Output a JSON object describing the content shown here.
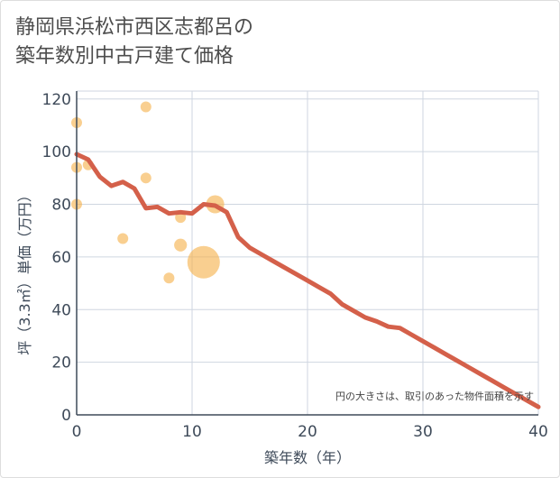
{
  "chart_data": {
    "type": "scatter+line",
    "title_lines": [
      "静岡県浜松市西区志都呂の",
      "築年数別中古戸建て価格"
    ],
    "xlabel": "築年数（年）",
    "ylabel": "坪（3.3㎡）単価（万円）",
    "xlim": [
      0,
      40
    ],
    "ylim": [
      0,
      123
    ],
    "xticks": [
      0,
      10,
      20,
      30,
      40
    ],
    "yticks": [
      0,
      20,
      40,
      60,
      80,
      100,
      120
    ],
    "grid": true,
    "annotation": "円の大きさは、取引のあった物件面積を示す",
    "scatter": [
      {
        "x": 0,
        "y": 111,
        "size": 1
      },
      {
        "x": 0,
        "y": 94,
        "size": 1
      },
      {
        "x": 0,
        "y": 80,
        "size": 1
      },
      {
        "x": 1,
        "y": 95,
        "size": 1
      },
      {
        "x": 4,
        "y": 67,
        "size": 1
      },
      {
        "x": 6,
        "y": 117,
        "size": 1
      },
      {
        "x": 6,
        "y": 90,
        "size": 1
      },
      {
        "x": 8,
        "y": 52,
        "size": 1
      },
      {
        "x": 9,
        "y": 75,
        "size": 1
      },
      {
        "x": 9,
        "y": 64.5,
        "size": 1.4
      },
      {
        "x": 11,
        "y": 58,
        "size": 9
      },
      {
        "x": 12,
        "y": 80,
        "size": 2.8
      }
    ],
    "trend": {
      "x": [
        0,
        1,
        2,
        3,
        4,
        5,
        6,
        7,
        8,
        9,
        10,
        11,
        12,
        13,
        14,
        15,
        16,
        17,
        18,
        19,
        20,
        21,
        22,
        23,
        24,
        25,
        26,
        27,
        28,
        29,
        30,
        31,
        32,
        33,
        34,
        35,
        36,
        37,
        38,
        39,
        40
      ],
      "y": [
        99,
        97,
        90.5,
        87,
        88.5,
        86,
        78.5,
        79,
        76.5,
        77,
        76.5,
        80,
        79.5,
        77,
        67.5,
        63.5,
        61,
        58.5,
        56,
        53.5,
        51,
        48.5,
        46,
        42,
        39.5,
        37,
        35.5,
        33.5,
        33,
        30.5,
        28,
        25.5,
        23,
        20.5,
        18,
        15.5,
        13,
        10.5,
        8,
        5.5,
        3
      ]
    },
    "colors": {
      "scatter": "#f5b14c",
      "trend": "#d4604a",
      "grid": "#cfd6e0",
      "axis": "#3e4a59"
    }
  }
}
